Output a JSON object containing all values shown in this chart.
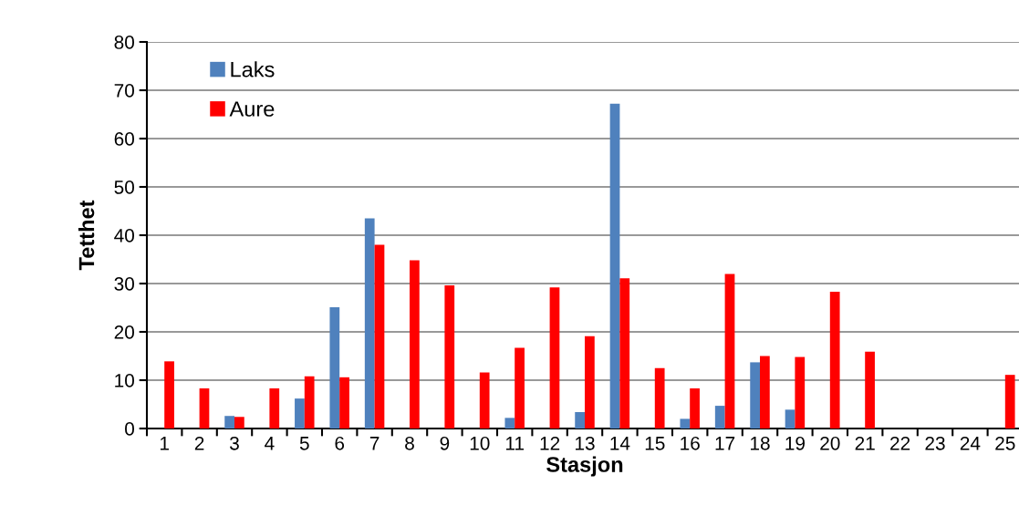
{
  "chart_data": {
    "type": "bar",
    "xlabel": "Stasjon",
    "ylabel": "Tetthet",
    "categories": [
      "1",
      "2",
      "3",
      "4",
      "5",
      "6",
      "7",
      "8",
      "9",
      "10",
      "11",
      "12",
      "13",
      "14",
      "15",
      "16",
      "17",
      "18",
      "19",
      "20",
      "21",
      "22",
      "23",
      "24",
      "25"
    ],
    "series": [
      {
        "name": "Laks",
        "color": "#4f81bd",
        "values": [
          0,
          0,
          2.6,
          0,
          6.2,
          25.1,
          43.5,
          0,
          0,
          0,
          2.2,
          0,
          3.4,
          67.2,
          0,
          2.0,
          4.7,
          13.7,
          3.9,
          0,
          0,
          0,
          0,
          0,
          0
        ]
      },
      {
        "name": "Aure",
        "color": "#ff0000",
        "values": [
          13.9,
          8.3,
          2.4,
          8.3,
          10.8,
          10.6,
          38.0,
          34.8,
          29.6,
          11.6,
          16.7,
          29.2,
          19.1,
          31.1,
          12.5,
          8.3,
          32.0,
          15.0,
          14.8,
          28.3,
          15.9,
          0,
          0,
          0,
          11.1
        ]
      }
    ],
    "ylim": [
      0,
      80
    ],
    "yticks": [
      0,
      10,
      20,
      30,
      40,
      50,
      60,
      70,
      80
    ],
    "grid": "y",
    "legend": "top left"
  }
}
